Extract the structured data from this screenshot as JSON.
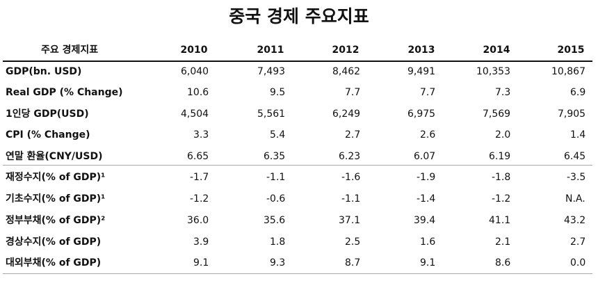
{
  "title": "중국 경제 주요지표",
  "table": {
    "header": [
      "주요 경제지표",
      "2010",
      "2011",
      "2012",
      "2013",
      "2014",
      "2015"
    ],
    "rows": [
      [
        "GDP(bn. USD)",
        "6,040",
        "7,493",
        "8,462",
        "9,491",
        "10,353",
        "10,867"
      ],
      [
        "Real GDP (% Change)",
        "10.6",
        "9.5",
        "7.7",
        "7.7",
        "7.3",
        "6.9"
      ],
      [
        "1인당 GDP(USD)",
        "4,504",
        "5,561",
        "6,249",
        "6,975",
        "7,569",
        "7,905"
      ],
      [
        "CPI (% Change)",
        "3.3",
        "5.4",
        "2.7",
        "2.6",
        "2.0",
        "1.4"
      ],
      [
        "연말 환율(CNY/USD)",
        "6.65",
        "6.35",
        "6.23",
        "6.07",
        "6.19",
        "6.45"
      ],
      [
        "재정수지(% of GDP)¹",
        "-1.7",
        "-1.1",
        "-1.6",
        "-1.9",
        "-1.8",
        "-3.5"
      ],
      [
        "기초수지(% of GDP)¹",
        "-1.2",
        "-0.6",
        "-1.1",
        "-1.4",
        "-1.2",
        "N.A."
      ],
      [
        "정부부채(% of GDP)²",
        "36.0",
        "35.6",
        "37.1",
        "39.4",
        "41.1",
        "43.2"
      ],
      [
        "경상수지(% of GDP)",
        "3.9",
        "1.8",
        "2.5",
        "1.6",
        "2.1",
        "2.7"
      ],
      [
        "대외부채(% of GDP)",
        "9.1",
        "9.3",
        "8.7",
        "9.1",
        "8.6",
        "0.0"
      ]
    ]
  }
}
